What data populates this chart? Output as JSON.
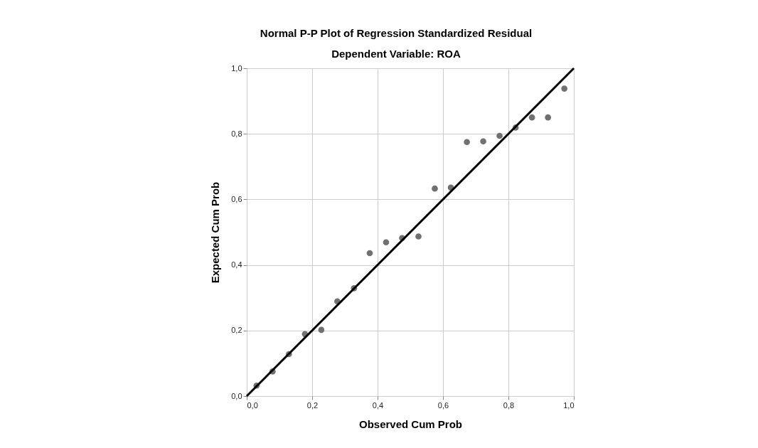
{
  "chart_data": {
    "type": "scatter",
    "title": "Normal P-P Plot of Regression Standardized Residual",
    "subtitle": "Dependent Variable: ROA",
    "xlabel": "Observed Cum Prob",
    "ylabel": "Expected Cum Prob",
    "xlim": [
      0,
      1
    ],
    "ylim": [
      0,
      1
    ],
    "xticks": [
      {
        "value": 0,
        "label": "0,0"
      },
      {
        "value": 0.2,
        "label": "0,2"
      },
      {
        "value": 0.4,
        "label": "0,4"
      },
      {
        "value": 0.6,
        "label": "0,6"
      },
      {
        "value": 0.8,
        "label": "0,8"
      },
      {
        "value": 1,
        "label": "1,0"
      }
    ],
    "yticks": [
      {
        "value": 0,
        "label": "0,0"
      },
      {
        "value": 0.2,
        "label": "0,2"
      },
      {
        "value": 0.4,
        "label": "0,4"
      },
      {
        "value": 0.6,
        "label": "0,6"
      },
      {
        "value": 0.8,
        "label": "0,8"
      },
      {
        "value": 1,
        "label": "1,0"
      }
    ],
    "grid": true,
    "series": [
      {
        "marker": "circle",
        "color": "#707070",
        "x": [
          0.03,
          0.079,
          0.129,
          0.178,
          0.228,
          0.277,
          0.328,
          0.376,
          0.426,
          0.475,
          0.525,
          0.575,
          0.624,
          0.673,
          0.723,
          0.773,
          0.822,
          0.872,
          0.921,
          0.971
        ],
        "values": [
          0.032,
          0.075,
          0.128,
          0.189,
          0.202,
          0.289,
          0.329,
          0.436,
          0.469,
          0.482,
          0.487,
          0.633,
          0.636,
          0.775,
          0.777,
          0.794,
          0.819,
          0.85,
          0.85,
          0.938
        ]
      },
      {
        "type": "line",
        "line_style": "solid",
        "color": "#000000",
        "x": [
          0,
          1
        ],
        "values": [
          0,
          1
        ]
      }
    ]
  }
}
